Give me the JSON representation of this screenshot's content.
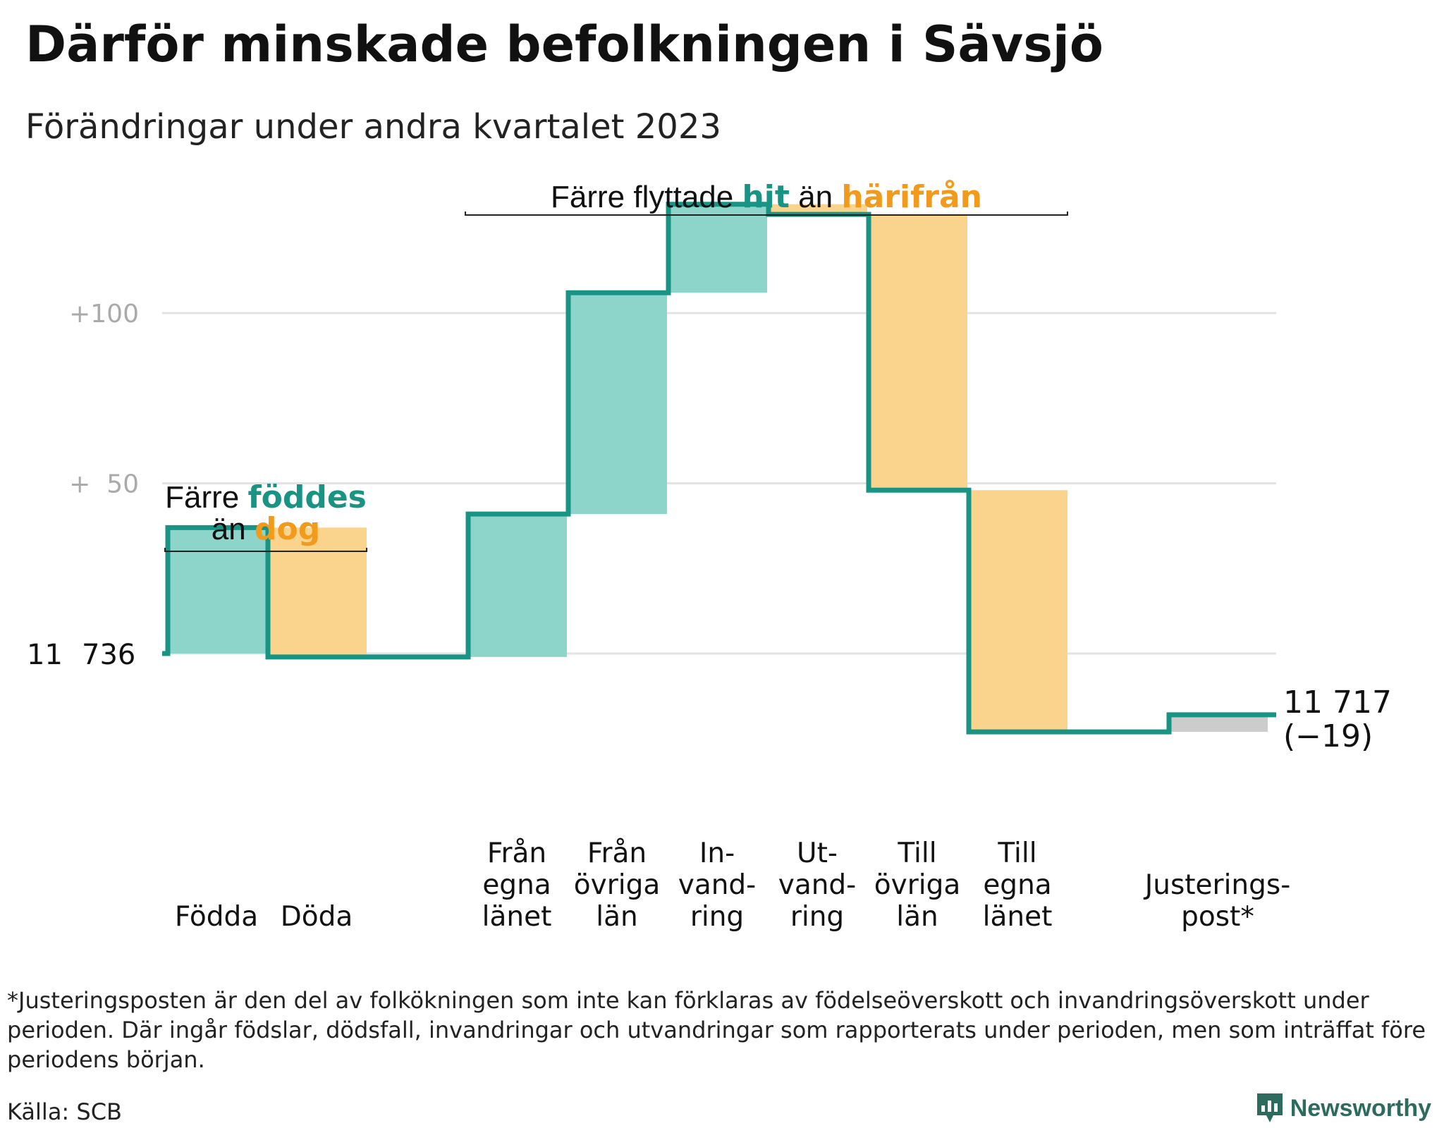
{
  "title": "Därför minskade befolkningen i Sävsjö",
  "subtitle": "Förändringar under andra kvartalet 2023",
  "colors": {
    "inflow": "#8dd4cb",
    "outflow": "#fad48d",
    "adjust": "#cccccc",
    "line": "#199484",
    "teal_text": "#199484",
    "orange_text": "#f29a1c",
    "grid": "#e3e3e3",
    "tick_text": "#aaaaaa"
  },
  "chart_data": {
    "type": "waterfall",
    "start_value": 11736,
    "start_label_parts": [
      "11",
      "736"
    ],
    "end_value": 11717,
    "end_label": "11 717",
    "end_change_label": "(−19)",
    "y_ticks": [
      {
        "value": 11786,
        "label": "+  50"
      },
      {
        "value": 11836,
        "label": "+100"
      }
    ],
    "ylim": [
      11695,
      11870
    ],
    "steps": [
      {
        "label_lines": [
          "Födda"
        ],
        "delta": 37,
        "kind": "inflow"
      },
      {
        "label_lines": [
          "Döda"
        ],
        "delta": -38,
        "kind": "outflow"
      },
      {
        "label_lines": [],
        "delta": 0,
        "kind": "gap"
      },
      {
        "label_lines": [
          "Från",
          "egna",
          "länet"
        ],
        "delta": 42,
        "kind": "inflow"
      },
      {
        "label_lines": [
          "Från",
          "övriga",
          "län"
        ],
        "delta": 65,
        "kind": "inflow"
      },
      {
        "label_lines": [
          "In-",
          "vand-",
          "ring"
        ],
        "delta": 26,
        "kind": "inflow"
      },
      {
        "label_lines": [
          "Ut-",
          "vand-",
          "ring"
        ],
        "delta": -3,
        "kind": "outflow"
      },
      {
        "label_lines": [
          "Till",
          "övriga",
          "län"
        ],
        "delta": -81,
        "kind": "outflow"
      },
      {
        "label_lines": [
          "Till",
          "egna",
          "länet"
        ],
        "delta": -71,
        "kind": "outflow"
      },
      {
        "label_lines": [],
        "delta": 0,
        "kind": "gap"
      },
      {
        "label_lines": [
          "Justerings-",
          "post*"
        ],
        "delta": 5,
        "kind": "adjust"
      }
    ],
    "annotations": [
      {
        "lines": [
          [
            {
              "text": "Färre ",
              "style": "plain"
            },
            {
              "text": "föddes",
              "style": "teal"
            }
          ],
          [
            {
              "text": "än ",
              "style": "plain"
            },
            {
              "text": "dog",
              "style": "orange"
            }
          ]
        ],
        "from_step": 0,
        "to_step": 1
      },
      {
        "lines": [
          [
            {
              "text": "Färre flyttade ",
              "style": "plain"
            },
            {
              "text": "hit",
              "style": "teal"
            },
            {
              "text": " än ",
              "style": "plain"
            },
            {
              "text": "härifrån",
              "style": "orange"
            }
          ]
        ],
        "from_step": 3,
        "to_step": 8
      }
    ]
  },
  "footnote": "*Justeringsposten är den del av folkökningen som inte kan förklaras av födelseöverskott och invandringsöverskott under perioden. Där ingår födslar, dödsfall, invandringar och utvandringar som rapporterats under perioden, men som inträffat före periodens början.",
  "source": "Källa: SCB",
  "brand": {
    "name": "Newsworthy",
    "icon": "newsworthy-logo-icon"
  }
}
